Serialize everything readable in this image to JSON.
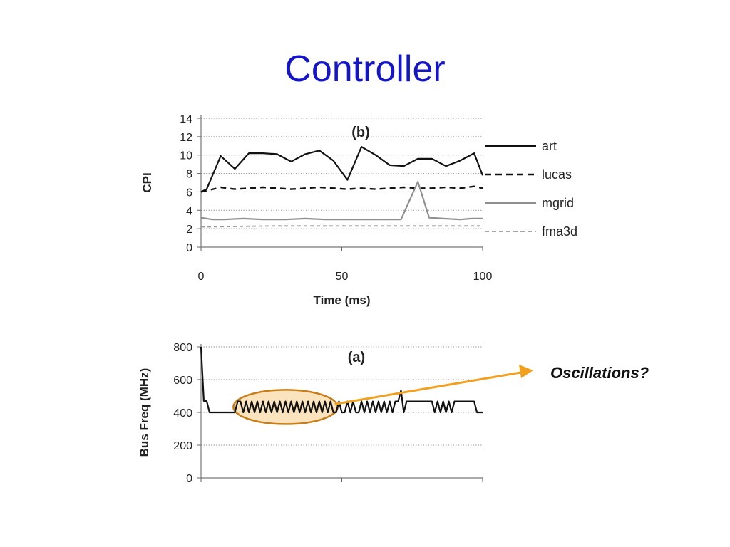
{
  "slide": {
    "title": "Controller",
    "annotation": "Oscillations?",
    "highlight_color": "#f9d9a8",
    "highlight_stroke": "#c87d18",
    "arrow_color": "#f2a020",
    "title_color": "#1515c8"
  },
  "chart_data": [
    {
      "type": "line",
      "panel": "(b)",
      "xlabel": "Time (ms)",
      "ylabel": "CPI",
      "xlim": [
        0,
        100
      ],
      "ylim": [
        0,
        14
      ],
      "x_ticks": [
        0,
        50,
        100
      ],
      "y_ticks": [
        0,
        2,
        4,
        6,
        8,
        10,
        12,
        14
      ],
      "grid": "horizontal dotted",
      "legend_position": "right",
      "series": [
        {
          "name": "art",
          "style": "solid",
          "color": "#111111",
          "x": [
            0,
            2,
            7,
            12,
            17,
            22,
            27,
            32,
            37,
            42,
            47,
            52,
            57,
            62,
            67,
            72,
            77,
            82,
            87,
            92,
            97,
            100
          ],
          "y": [
            6.0,
            6.3,
            9.9,
            8.5,
            10.2,
            10.2,
            10.1,
            9.3,
            10.1,
            10.5,
            9.4,
            7.3,
            10.9,
            10.0,
            8.9,
            8.8,
            9.6,
            9.6,
            8.8,
            9.4,
            10.2,
            7.8
          ]
        },
        {
          "name": "lucas",
          "style": "dashed",
          "color": "#111111",
          "x": [
            0,
            3,
            7,
            12,
            17,
            22,
            27,
            32,
            37,
            42,
            47,
            52,
            57,
            62,
            67,
            72,
            77,
            82,
            87,
            92,
            97,
            100
          ],
          "y": [
            6.0,
            6.2,
            6.5,
            6.3,
            6.4,
            6.5,
            6.4,
            6.3,
            6.4,
            6.5,
            6.4,
            6.3,
            6.4,
            6.3,
            6.4,
            6.5,
            6.4,
            6.4,
            6.5,
            6.4,
            6.6,
            6.4
          ]
        },
        {
          "name": "mgrid",
          "style": "solid",
          "color": "#8f8f8f",
          "x": [
            0,
            4,
            8,
            15,
            22,
            30,
            37,
            44,
            52,
            58,
            65,
            71,
            77,
            81,
            86,
            92,
            96,
            100
          ],
          "y": [
            3.2,
            3.0,
            3.0,
            3.1,
            3.0,
            3.0,
            3.1,
            3.0,
            3.0,
            3.0,
            3.0,
            3.0,
            7.1,
            3.2,
            3.1,
            3.0,
            3.1,
            3.1
          ]
        },
        {
          "name": "fma3d",
          "style": "dashed",
          "color": "#9a9a9a",
          "x": [
            0,
            25,
            50,
            75,
            100
          ],
          "y": [
            2.2,
            2.3,
            2.3,
            2.3,
            2.3
          ]
        }
      ]
    },
    {
      "type": "line",
      "panel": "(a)",
      "xlabel": "",
      "ylabel": "Bus Freq (MHz)",
      "xlim": [
        0,
        100
      ],
      "ylim": [
        0,
        800
      ],
      "y_ticks": [
        0,
        200,
        400,
        600,
        800
      ],
      "grid": "horizontal dotted",
      "series": [
        {
          "name": "",
          "style": "solid",
          "color": "#111111",
          "x": [
            0,
            1,
            2,
            3,
            4,
            5,
            6,
            7,
            8,
            9,
            10,
            11,
            12,
            13,
            14,
            15,
            16,
            17,
            18,
            19,
            20,
            21,
            22,
            23,
            24,
            25,
            26,
            27,
            28,
            29,
            30,
            31,
            32,
            33,
            34,
            35,
            36,
            37,
            38,
            39,
            40,
            41,
            42,
            43,
            44,
            45,
            46,
            47,
            48,
            49,
            50,
            51,
            52,
            53,
            54,
            55,
            56,
            57,
            58,
            59,
            60,
            61,
            62,
            63,
            64,
            65,
            66,
            67,
            68,
            69,
            70,
            71,
            72,
            73,
            74,
            75,
            76,
            77,
            78,
            79,
            80,
            81,
            82,
            83,
            84,
            85,
            86,
            87,
            88,
            89,
            90,
            91,
            92,
            93,
            94,
            95,
            96,
            97,
            98,
            99,
            100
          ],
          "y": [
            800,
            470,
            470,
            400,
            400,
            400,
            400,
            400,
            400,
            400,
            400,
            400,
            400,
            467,
            467,
            400,
            467,
            400,
            467,
            400,
            467,
            400,
            467,
            400,
            467,
            400,
            467,
            400,
            467,
            400,
            467,
            400,
            467,
            400,
            467,
            400,
            467,
            400,
            467,
            400,
            467,
            400,
            467,
            400,
            467,
            400,
            467,
            400,
            400,
            467,
            400,
            400,
            467,
            400,
            467,
            400,
            400,
            467,
            400,
            467,
            400,
            467,
            400,
            467,
            400,
            467,
            400,
            467,
            400,
            467,
            467,
            533,
            400,
            467,
            467,
            467,
            467,
            467,
            467,
            467,
            467,
            467,
            467,
            400,
            467,
            400,
            467,
            400,
            467,
            400,
            467,
            467,
            467,
            467,
            467,
            467,
            467,
            467,
            400,
            400,
            400
          ]
        }
      ]
    }
  ]
}
